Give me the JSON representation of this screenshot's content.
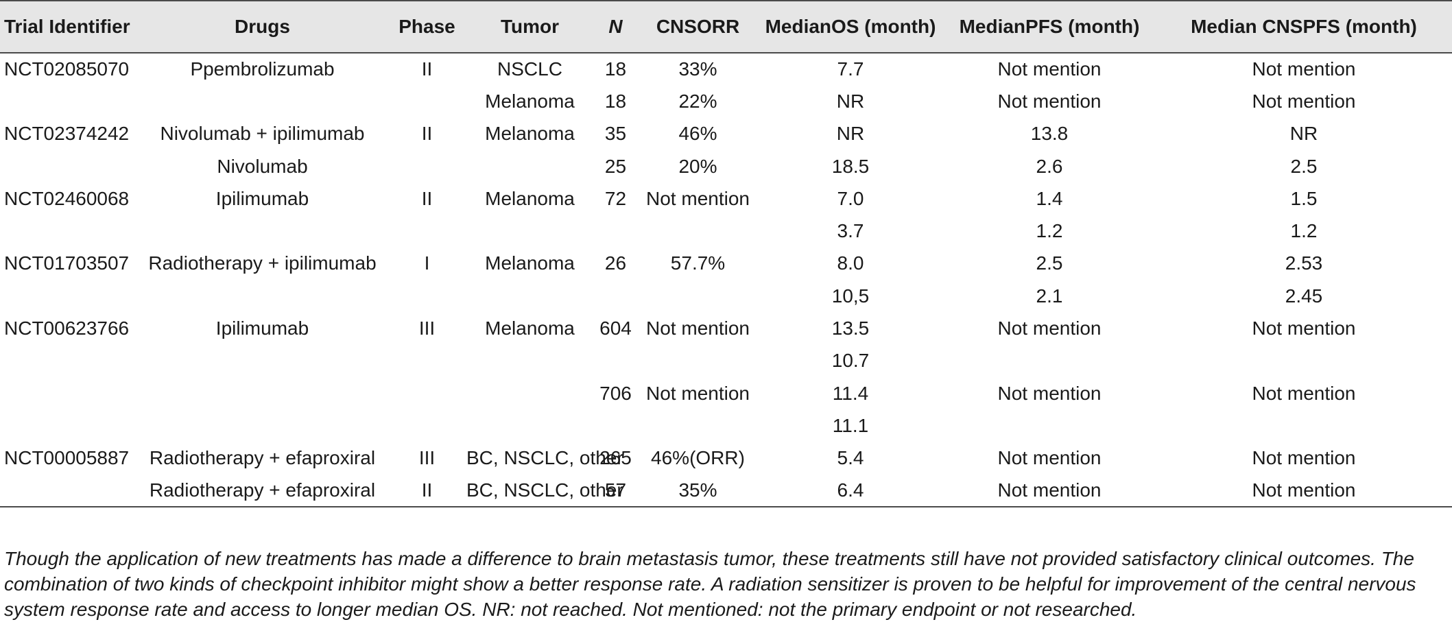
{
  "table": {
    "headers": [
      "Trial Identifier",
      "Drugs",
      "Phase",
      "Tumor",
      "N",
      "CNSORR",
      "MedianOS (month)",
      "MedianPFS (month)",
      "Median CNSPFS (month)"
    ],
    "rows": [
      [
        "NCT02085070",
        "Ppembrolizumab",
        "II",
        "NSCLC",
        "18",
        "33%",
        "7.7",
        "Not mention",
        "Not mention"
      ],
      [
        "",
        "",
        "",
        "Melanoma",
        "18",
        "22%",
        "NR",
        "Not mention",
        "Not mention"
      ],
      [
        "NCT02374242",
        "Nivolumab + ipilimumab",
        "II",
        "Melanoma",
        "35",
        "46%",
        "NR",
        "13.8",
        "NR"
      ],
      [
        "",
        "Nivolumab",
        "",
        "",
        "25",
        "20%",
        "18.5",
        "2.6",
        "2.5"
      ],
      [
        "NCT02460068",
        "Ipilimumab",
        "II",
        "Melanoma",
        "72",
        "Not mention",
        "7.0",
        "1.4",
        "1.5"
      ],
      [
        "",
        "",
        "",
        "",
        "",
        "",
        "3.7",
        "1.2",
        "1.2"
      ],
      [
        "NCT01703507",
        "Radiotherapy + ipilimumab",
        "I",
        "Melanoma",
        "26",
        "57.7%",
        "8.0",
        "2.5",
        "2.53"
      ],
      [
        "",
        "",
        "",
        "",
        "",
        "",
        "10,5",
        "2.1",
        "2.45"
      ],
      [
        "NCT00623766",
        "Ipilimumab",
        "III",
        "Melanoma",
        "604",
        "Not mention",
        "13.5",
        "Not mention",
        "Not mention"
      ],
      [
        "",
        "",
        "",
        "",
        "",
        "",
        "10.7",
        "",
        ""
      ],
      [
        "",
        "",
        "",
        "",
        "706",
        "Not mention",
        "11.4",
        "Not mention",
        "Not mention"
      ],
      [
        "",
        "",
        "",
        "",
        "",
        "",
        "11.1",
        "",
        ""
      ],
      [
        "NCT00005887",
        "Radiotherapy + efaproxiral",
        "III",
        "BC, NSCLC, other",
        "265",
        "46%(ORR)",
        "5.4",
        "Not mention",
        "Not mention"
      ],
      [
        "",
        "Radiotherapy + efaproxiral",
        "II",
        "BC, NSCLC, other",
        "57",
        "35%",
        "6.4",
        "Not mention",
        "Not mention"
      ]
    ]
  },
  "caption": "Though the application of new treatments has made a difference to brain metastasis tumor, these treatments still have not provided satisfactory clinical outcomes. The combination of two kinds of checkpoint inhibitor might show a better response rate. A radiation sensitizer is proven to be helpful for improvement of the central nervous system response rate and access to longer median OS. NR: not reached. Not mentioned: not the primary endpoint or not researched."
}
